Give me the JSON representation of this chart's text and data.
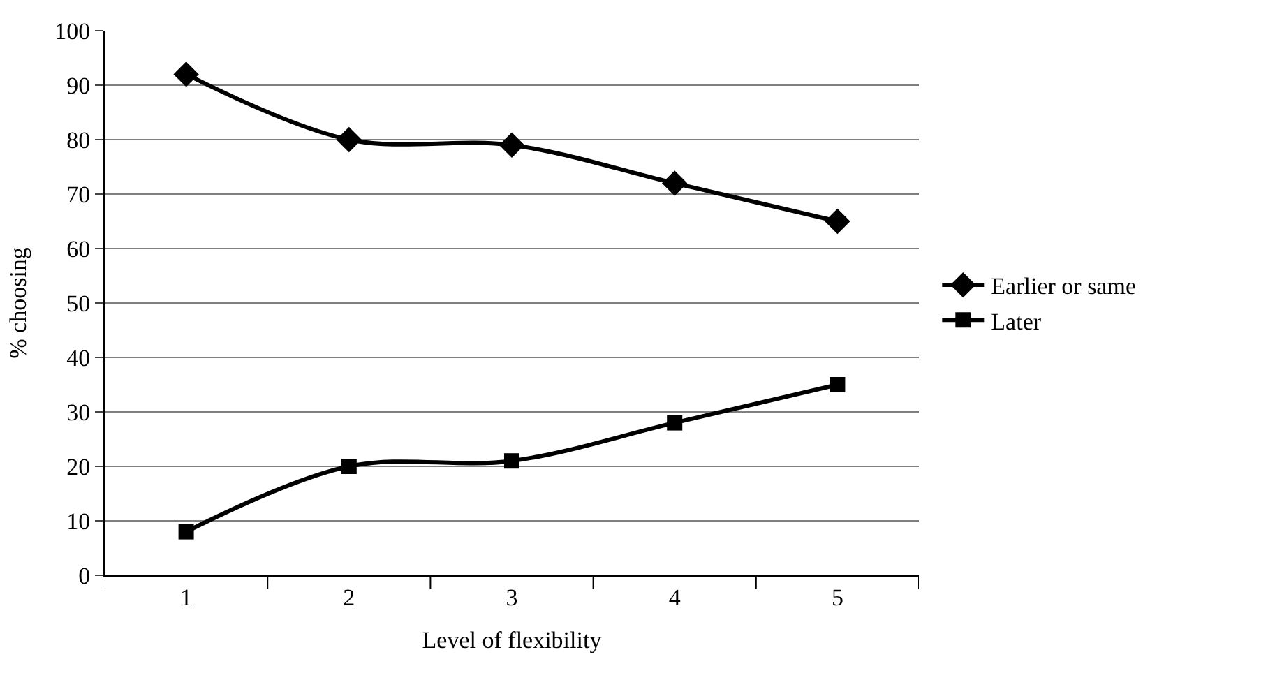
{
  "chart_data": {
    "type": "line",
    "xlabel": "Level of flexibility",
    "ylabel": "% choosing",
    "categories": [
      "1",
      "2",
      "3",
      "4",
      "5"
    ],
    "series": [
      {
        "name": "Earlier or same",
        "color": "#000000",
        "marker": "diamond",
        "values": [
          92,
          80,
          79,
          72,
          65
        ]
      },
      {
        "name": "Later",
        "color": "#000000",
        "marker": "square",
        "values": [
          8,
          20,
          21,
          28,
          35
        ]
      }
    ],
    "ylim": [
      0,
      100
    ],
    "yticks": [
      0,
      10,
      20,
      30,
      40,
      50,
      60,
      70,
      80,
      90,
      100
    ],
    "grid": "y",
    "legend": "right",
    "line_style": "solid"
  }
}
